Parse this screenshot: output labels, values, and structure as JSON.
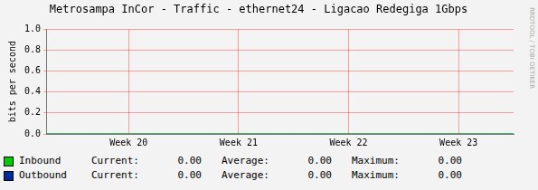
{
  "chart_data": {
    "type": "line",
    "title": "Metrosampa InCor - Traffic - ethernet24 - Ligacao Redegiga 1Gbps",
    "y_label": "bits per second",
    "watermark": "RRDTOOL / TOBI OETIKER",
    "categories": [
      null,
      null,
      null,
      "Week 20",
      null,
      null,
      null,
      "Week 21",
      null,
      null,
      null,
      "Week 22",
      null,
      null,
      null,
      "Week 23",
      null,
      null
    ],
    "ylim": [
      0,
      1.0
    ],
    "yticks": [
      {
        "value": 0,
        "label": "0.0"
      },
      {
        "value": 0.2,
        "label": "0.2"
      },
      {
        "value": 0.4,
        "label": "0.4"
      },
      {
        "value": 0.6,
        "label": "0.6"
      },
      {
        "value": 0.8,
        "label": "0.8"
      },
      {
        "value": 1.0,
        "label": "1.0"
      }
    ],
    "grid": true,
    "legend": "bottom",
    "stat_labels": [
      "Current:",
      "Average:",
      "Maximum:"
    ],
    "series": [
      {
        "name": "Inbound",
        "color": "#00cc00",
        "values": [
          0,
          0,
          0,
          0,
          0,
          0,
          0,
          0,
          0,
          0,
          0,
          0,
          0,
          0,
          0,
          0,
          0,
          0
        ],
        "stats": [
          0,
          0,
          0
        ],
        "stat_texts": [
          "0.00",
          "0.00",
          "0.00"
        ]
      },
      {
        "name": "Outbound",
        "color": "#002a97",
        "values": [
          0,
          0,
          0,
          0,
          0,
          0,
          0,
          0,
          0,
          0,
          0,
          0,
          0,
          0,
          0,
          0,
          0,
          0
        ],
        "stats": [
          0,
          0,
          0
        ],
        "stat_texts": [
          "0.00",
          "0.00",
          "0.00"
        ]
      }
    ]
  }
}
